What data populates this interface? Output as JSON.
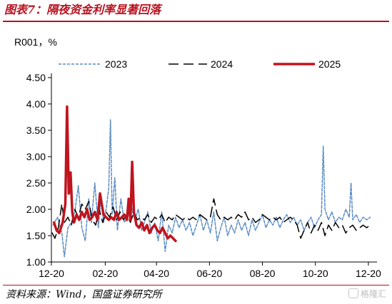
{
  "figure": {
    "title": "图表7：隔夜资金利率显著回落",
    "source": "资料来源：Wind，国盛证券研究所",
    "watermark": "格隆汇"
  },
  "chart_data": {
    "type": "line",
    "title": "",
    "ylabel": "R001，%",
    "xlabel": "",
    "ylim": [
      1.0,
      4.5
    ],
    "yticks": [
      "1.00",
      "1.50",
      "2.00",
      "2.50",
      "3.00",
      "3.50",
      "4.00",
      "4.50"
    ],
    "x_axis_type": "day-of-year, Dec 20 to Dec 25",
    "xlim": [
      "12-20",
      "12-25"
    ],
    "xticks": [
      {
        "label": "12-20",
        "date": "12-20"
      },
      {
        "label": "02-20",
        "date": "02-20"
      },
      {
        "label": "04-20",
        "date": "04-20"
      },
      {
        "label": "06-20",
        "date": "06-20"
      },
      {
        "label": "08-20",
        "date": "08-20"
      },
      {
        "label": "10-20",
        "date": "10-20"
      },
      {
        "label": "12-20",
        "date": "12-20"
      }
    ],
    "grid": false,
    "legend_position": "top",
    "series": [
      {
        "name": "2023",
        "color": "#5b8cc4",
        "style": "dotted",
        "points": [
          [
            "12-22",
            1.7
          ],
          [
            "12-27",
            1.85
          ],
          [
            "01-01",
            1.55
          ],
          [
            "01-04",
            1.1
          ],
          [
            "01-08",
            1.65
          ],
          [
            "01-12",
            1.75
          ],
          [
            "01-16",
            1.95
          ],
          [
            "01-20",
            2.45
          ],
          [
            "01-24",
            1.65
          ],
          [
            "01-28",
            1.4
          ],
          [
            "02-01",
            2.2
          ],
          [
            "02-04",
            1.75
          ],
          [
            "02-08",
            2.5
          ],
          [
            "02-12",
            1.65
          ],
          [
            "02-15",
            2.2
          ],
          [
            "02-18",
            1.75
          ],
          [
            "02-21",
            2.0
          ],
          [
            "02-24",
            2.4
          ],
          [
            "02-26",
            3.7
          ],
          [
            "02-28",
            1.9
          ],
          [
            "03-03",
            2.6
          ],
          [
            "03-06",
            1.6
          ],
          [
            "03-10",
            2.2
          ],
          [
            "03-14",
            1.75
          ],
          [
            "03-18",
            1.85
          ],
          [
            "03-22",
            2.05
          ],
          [
            "03-26",
            1.8
          ],
          [
            "03-30",
            2.0
          ],
          [
            "04-03",
            1.6
          ],
          [
            "04-06",
            1.75
          ],
          [
            "04-10",
            1.95
          ],
          [
            "04-14",
            1.55
          ],
          [
            "04-18",
            1.75
          ],
          [
            "04-22",
            1.4
          ],
          [
            "04-26",
            1.95
          ],
          [
            "04-30",
            1.2
          ],
          [
            "05-04",
            1.7
          ],
          [
            "05-08",
            1.55
          ],
          [
            "05-12",
            1.85
          ],
          [
            "05-16",
            1.65
          ],
          [
            "05-20",
            1.8
          ],
          [
            "05-24",
            1.6
          ],
          [
            "05-28",
            1.75
          ],
          [
            "06-01",
            1.5
          ],
          [
            "06-05",
            1.7
          ],
          [
            "06-09",
            1.9
          ],
          [
            "06-13",
            1.6
          ],
          [
            "06-17",
            1.8
          ],
          [
            "06-21",
            1.55
          ],
          [
            "06-25",
            1.95
          ],
          [
            "06-29",
            1.4
          ],
          [
            "07-03",
            1.65
          ],
          [
            "07-07",
            1.85
          ],
          [
            "07-11",
            1.5
          ],
          [
            "07-15",
            1.7
          ],
          [
            "07-19",
            1.55
          ],
          [
            "07-23",
            1.8
          ],
          [
            "07-27",
            1.6
          ],
          [
            "07-31",
            1.75
          ],
          [
            "08-04",
            1.5
          ],
          [
            "08-08",
            1.8
          ],
          [
            "08-12",
            1.6
          ],
          [
            "08-16",
            1.75
          ],
          [
            "08-20",
            1.9
          ],
          [
            "08-24",
            1.65
          ],
          [
            "08-28",
            1.8
          ],
          [
            "09-01",
            1.7
          ],
          [
            "09-05",
            1.85
          ],
          [
            "09-09",
            1.65
          ],
          [
            "09-13",
            1.8
          ],
          [
            "09-17",
            1.9
          ],
          [
            "09-21",
            1.75
          ],
          [
            "09-25",
            1.85
          ],
          [
            "09-29",
            1.7
          ],
          [
            "10-03",
            1.8
          ],
          [
            "10-07",
            1.6
          ],
          [
            "10-11",
            1.75
          ],
          [
            "10-15",
            1.85
          ],
          [
            "10-19",
            1.65
          ],
          [
            "10-23",
            1.8
          ],
          [
            "10-27",
            1.9
          ],
          [
            "10-29",
            3.2
          ],
          [
            "10-31",
            2.0
          ],
          [
            "11-04",
            1.8
          ],
          [
            "11-08",
            1.95
          ],
          [
            "11-12",
            1.75
          ],
          [
            "11-16",
            1.85
          ],
          [
            "11-20",
            1.8
          ],
          [
            "11-24",
            2.0
          ],
          [
            "11-28",
            1.85
          ],
          [
            "11-30",
            2.5
          ],
          [
            "12-02",
            1.8
          ],
          [
            "12-06",
            1.9
          ],
          [
            "12-10",
            1.75
          ],
          [
            "12-14",
            1.85
          ],
          [
            "12-18",
            1.8
          ],
          [
            "12-22",
            1.85
          ]
        ]
      },
      {
        "name": "2024",
        "color": "#000000",
        "style": "dashed",
        "points": [
          [
            "12-21",
            1.55
          ],
          [
            "12-24",
            1.45
          ],
          [
            "12-28",
            1.65
          ],
          [
            "01-01",
            2.1
          ],
          [
            "01-04",
            1.75
          ],
          [
            "01-08",
            1.85
          ],
          [
            "01-12",
            1.7
          ],
          [
            "01-16",
            2.0
          ],
          [
            "01-20",
            1.85
          ],
          [
            "01-24",
            2.1
          ],
          [
            "01-28",
            2.0
          ],
          [
            "02-01",
            2.15
          ],
          [
            "02-05",
            1.8
          ],
          [
            "02-09",
            1.7
          ],
          [
            "02-13",
            2.0
          ],
          [
            "02-17",
            1.75
          ],
          [
            "02-21",
            1.95
          ],
          [
            "02-25",
            1.85
          ],
          [
            "03-01",
            2.05
          ],
          [
            "03-05",
            1.8
          ],
          [
            "03-09",
            1.95
          ],
          [
            "03-13",
            1.8
          ],
          [
            "03-17",
            1.9
          ],
          [
            "03-21",
            1.75
          ],
          [
            "03-25",
            1.95
          ],
          [
            "03-29",
            1.8
          ],
          [
            "04-02",
            1.85
          ],
          [
            "04-06",
            1.8
          ],
          [
            "04-10",
            1.9
          ],
          [
            "04-14",
            1.75
          ],
          [
            "04-18",
            1.85
          ],
          [
            "04-22",
            1.8
          ],
          [
            "04-26",
            1.9
          ],
          [
            "04-30",
            1.75
          ],
          [
            "05-04",
            1.85
          ],
          [
            "05-08",
            1.8
          ],
          [
            "05-12",
            1.9
          ],
          [
            "05-16",
            1.85
          ],
          [
            "05-20",
            1.8
          ],
          [
            "05-24",
            1.85
          ],
          [
            "05-28",
            1.8
          ],
          [
            "06-01",
            1.85
          ],
          [
            "06-05",
            1.8
          ],
          [
            "06-09",
            1.9
          ],
          [
            "06-13",
            1.85
          ],
          [
            "06-17",
            1.8
          ],
          [
            "06-21",
            1.85
          ],
          [
            "06-25",
            2.2
          ],
          [
            "06-29",
            1.9
          ],
          [
            "07-03",
            1.8
          ],
          [
            "07-07",
            1.85
          ],
          [
            "07-11",
            1.8
          ],
          [
            "07-15",
            1.85
          ],
          [
            "07-19",
            1.8
          ],
          [
            "07-23",
            1.9
          ],
          [
            "07-27",
            1.85
          ],
          [
            "07-31",
            1.95
          ],
          [
            "08-04",
            1.8
          ],
          [
            "08-08",
            1.85
          ],
          [
            "08-12",
            1.75
          ],
          [
            "08-16",
            1.8
          ],
          [
            "08-20",
            1.9
          ],
          [
            "08-24",
            1.85
          ],
          [
            "08-28",
            1.8
          ],
          [
            "09-01",
            1.85
          ],
          [
            "09-05",
            1.8
          ],
          [
            "09-09",
            1.85
          ],
          [
            "09-13",
            1.75
          ],
          [
            "09-17",
            1.8
          ],
          [
            "09-21",
            1.85
          ],
          [
            "09-25",
            1.8
          ],
          [
            "09-29",
            1.7
          ],
          [
            "10-03",
            1.45
          ],
          [
            "10-07",
            1.6
          ],
          [
            "10-11",
            1.75
          ],
          [
            "10-15",
            1.55
          ],
          [
            "10-19",
            1.7
          ],
          [
            "10-23",
            1.6
          ],
          [
            "10-27",
            1.75
          ],
          [
            "10-31",
            1.5
          ],
          [
            "11-04",
            1.7
          ],
          [
            "11-08",
            1.6
          ],
          [
            "11-12",
            1.75
          ],
          [
            "11-16",
            1.65
          ],
          [
            "11-20",
            1.7
          ],
          [
            "11-24",
            1.55
          ],
          [
            "11-28",
            1.65
          ],
          [
            "12-02",
            1.7
          ],
          [
            "12-06",
            1.6
          ],
          [
            "12-10",
            1.65
          ],
          [
            "12-14",
            1.7
          ],
          [
            "12-18",
            1.65
          ],
          [
            "12-22",
            1.7
          ]
        ]
      },
      {
        "name": "2025",
        "color": "#c0141e",
        "style": "solid",
        "points": [
          [
            "12-23",
            1.75
          ],
          [
            "12-26",
            1.6
          ],
          [
            "12-29",
            1.55
          ],
          [
            "01-02",
            1.75
          ],
          [
            "01-05",
            2.1
          ],
          [
            "01-07",
            3.95
          ],
          [
            "01-09",
            2.3
          ],
          [
            "01-11",
            2.7
          ],
          [
            "01-13",
            1.95
          ],
          [
            "01-15",
            1.75
          ],
          [
            "01-18",
            1.9
          ],
          [
            "01-21",
            1.8
          ],
          [
            "01-24",
            1.95
          ],
          [
            "01-27",
            1.85
          ],
          [
            "01-30",
            2.0
          ],
          [
            "02-02",
            1.8
          ],
          [
            "02-05",
            1.85
          ],
          [
            "02-08",
            1.95
          ],
          [
            "02-11",
            1.8
          ],
          [
            "02-14",
            2.3
          ],
          [
            "02-16",
            2.1
          ],
          [
            "02-18",
            1.9
          ],
          [
            "02-21",
            1.85
          ],
          [
            "02-24",
            1.8
          ],
          [
            "02-27",
            1.85
          ],
          [
            "03-02",
            1.8
          ],
          [
            "03-05",
            1.95
          ],
          [
            "03-08",
            1.8
          ],
          [
            "03-11",
            1.85
          ],
          [
            "03-14",
            1.9
          ],
          [
            "03-17",
            1.8
          ],
          [
            "03-19",
            2.2
          ],
          [
            "03-21",
            1.8
          ],
          [
            "03-23",
            2.9
          ],
          [
            "03-25",
            1.95
          ],
          [
            "03-28",
            1.7
          ],
          [
            "03-31",
            1.65
          ],
          [
            "04-03",
            1.75
          ],
          [
            "04-06",
            1.6
          ],
          [
            "04-09",
            1.7
          ],
          [
            "04-12",
            1.55
          ],
          [
            "04-15",
            1.65
          ],
          [
            "04-18",
            1.7
          ],
          [
            "04-21",
            1.6
          ],
          [
            "04-24",
            1.55
          ],
          [
            "04-27",
            1.65
          ],
          [
            "04-30",
            1.55
          ],
          [
            "05-03",
            1.45
          ],
          [
            "05-06",
            1.5
          ],
          [
            "05-09",
            1.45
          ],
          [
            "05-12",
            1.4
          ]
        ]
      }
    ]
  }
}
